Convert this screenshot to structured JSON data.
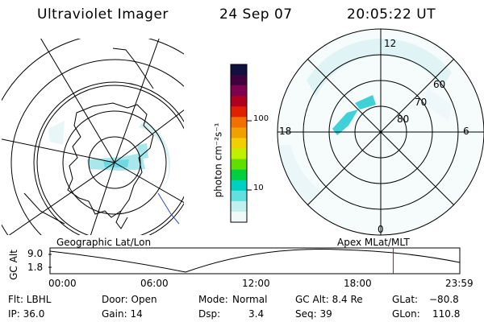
{
  "header": {
    "instrument": "Ultraviolet Imager",
    "date": "24 Sep 07",
    "time": "20:05:22 UT"
  },
  "left_panel": {
    "caption": "Geographic Lat/Lon"
  },
  "right_panel": {
    "caption": "Apex MLat/MLT",
    "mlt_labels": [
      "12",
      "18",
      "6",
      "0"
    ],
    "lat_labels": [
      "60",
      "70",
      "80"
    ]
  },
  "colorbar": {
    "unit_label": "photon cm⁻²s⁻¹",
    "tick_labels": [
      "100",
      "10"
    ],
    "colors": [
      "#101040",
      "#400040",
      "#800050",
      "#b00020",
      "#e02000",
      "#f07000",
      "#f0a000",
      "#f0d000",
      "#c0f000",
      "#60e000",
      "#00d040",
      "#00d0c0",
      "#60e0e0",
      "#c0f0f0",
      "#f0f8f8"
    ]
  },
  "timeline": {
    "y_axis_label": "GC Alt",
    "y_ticks": [
      "9.0",
      "1.8"
    ],
    "x_ticks": [
      "00:00",
      "06:00",
      "12:00",
      "18:00",
      "23:59"
    ],
    "current_time_fraction": 0.8375,
    "marker_color": "#e00000"
  },
  "info": {
    "filter": "Flt: LBHL",
    "ip": "IP: 36.0",
    "door": "Door: Open",
    "gain": "Gain: 14",
    "mode_label": "Mode:",
    "mode_value": "Normal",
    "dsp_label": "Dsp:",
    "dsp_value": "3.4",
    "gc_alt": "GC Alt: 8.4 Re",
    "seq": "Seq: 39",
    "glat_label": "GLat:",
    "glat_value": "−80.8",
    "glon_label": "GLon:",
    "glon_value": "110.8"
  }
}
